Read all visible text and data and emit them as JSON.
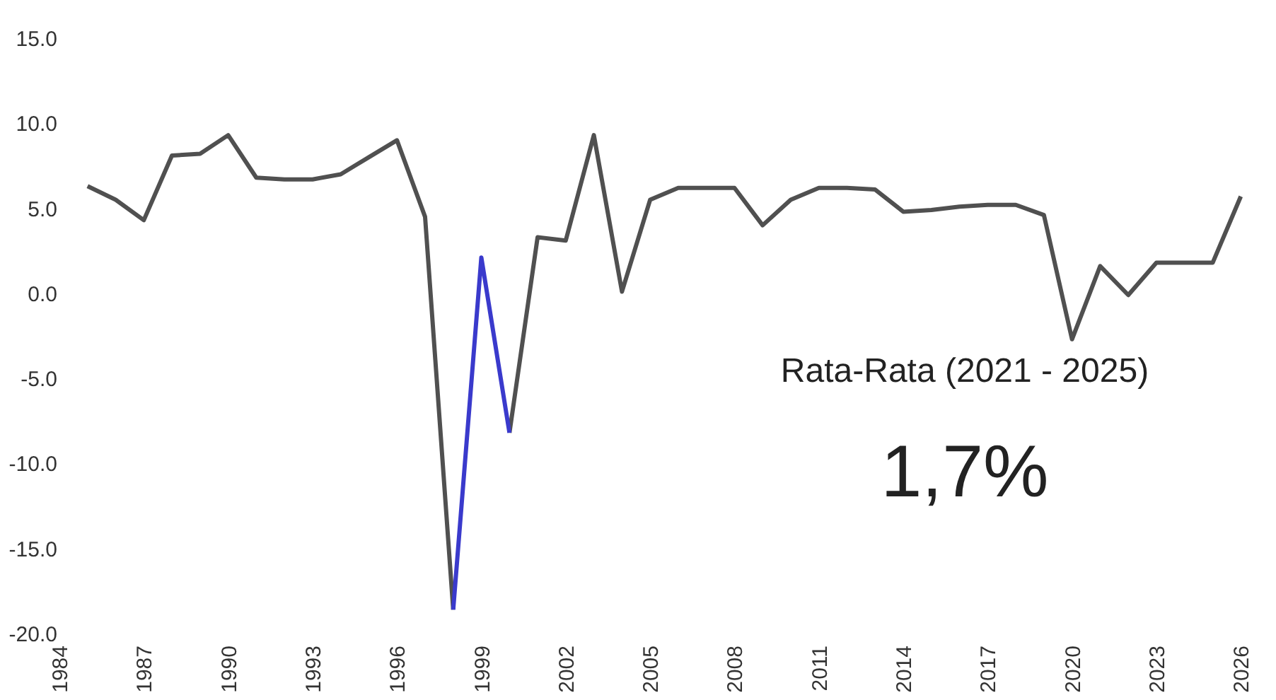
{
  "chart_data": {
    "type": "line",
    "x": [
      1985,
      1986,
      1987,
      1988,
      1989,
      1990,
      1991,
      1992,
      1993,
      1994,
      1995,
      1996,
      1997,
      1998,
      1999,
      2000,
      2001,
      2002,
      2003,
      2004,
      2005,
      2006,
      2007,
      2008,
      2009,
      2010,
      2011,
      2012,
      2013,
      2014,
      2015,
      2016,
      2017,
      2018,
      2019,
      2020,
      2021,
      2022,
      2023,
      2024,
      2025,
      2026
    ],
    "series": [
      {
        "color": "#505050",
        "values": [
          6.3,
          5.5,
          4.3,
          8.1,
          8.2,
          9.3,
          6.8,
          6.7,
          6.7,
          7.0,
          8.0,
          9.0,
          4.5,
          -18.6,
          null,
          -8.2,
          3.3,
          3.1,
          9.3,
          0.1,
          5.5,
          6.2,
          6.2,
          6.2,
          4.0,
          5.5,
          6.2,
          6.2,
          6.1,
          4.8,
          4.9,
          5.1,
          5.2,
          5.2,
          4.6,
          -2.7,
          1.6,
          -0.1,
          1.8,
          1.8,
          1.8,
          5.7
        ]
      },
      {
        "color": "#3a3acc",
        "values": [
          null,
          null,
          null,
          null,
          null,
          null,
          null,
          null,
          null,
          null,
          null,
          null,
          null,
          -18.6,
          2.1,
          -8.2,
          null,
          null,
          null,
          null,
          null,
          null,
          null,
          null,
          null,
          null,
          null,
          null,
          null,
          null,
          null,
          null,
          null,
          null,
          null,
          null,
          null,
          null,
          null,
          null,
          null,
          null
        ]
      }
    ],
    "xlim": [
      1984,
      2027
    ],
    "xticks": [
      1984,
      1987,
      1990,
      1993,
      1996,
      1999,
      2002,
      2005,
      2008,
      2011,
      2014,
      2017,
      2020,
      2023,
      2026
    ],
    "ylim": [
      -20,
      15
    ],
    "yticks": [
      {
        "value": 15,
        "label": "15.0"
      },
      {
        "value": 10,
        "label": "10.0"
      },
      {
        "value": 5,
        "label": "5.0"
      },
      {
        "value": 0,
        "label": "0.0"
      },
      {
        "value": -5,
        "label": "-5.0"
      },
      {
        "value": -10,
        "label": "-10.0"
      },
      {
        "value": -15,
        "label": "-15.0"
      },
      {
        "value": -20,
        "label": "-20.0"
      }
    ],
    "grid": false,
    "annotations": [
      "Rata-Rata (2021 - 2025)",
      "1,7%"
    ]
  }
}
